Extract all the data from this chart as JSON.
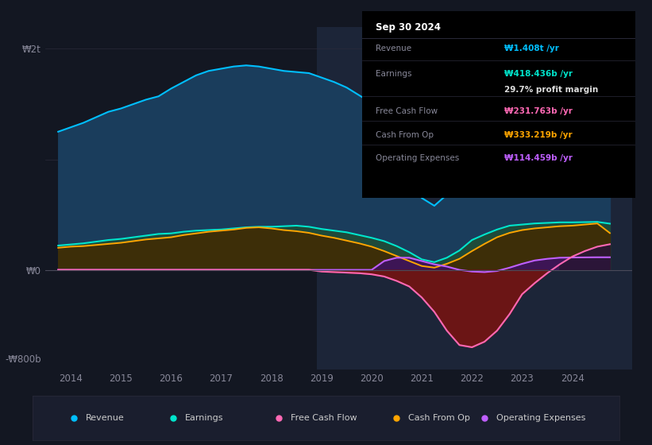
{
  "bg_color": "#131722",
  "plot_bg_color": "#131722",
  "info_box": {
    "title": "Sep 30 2024",
    "rows": [
      {
        "label": "Revenue",
        "value": "₩1.408t /yr",
        "color": "#00bfff"
      },
      {
        "label": "Earnings",
        "value": "₩418.436b /yr",
        "color": "#00e5cc"
      },
      {
        "label": "",
        "value": "29.7% profit margin",
        "color": "#ffffff"
      },
      {
        "label": "Free Cash Flow",
        "value": "₩231.763b /yr",
        "color": "#ff69b4"
      },
      {
        "label": "Cash From Op",
        "value": "₩333.219b /yr",
        "color": "#ffa500"
      },
      {
        "label": "Operating Expenses",
        "value": "₩114.459b /yr",
        "color": "#bf5fff"
      }
    ]
  },
  "years": [
    2013.75,
    2014.0,
    2014.25,
    2014.5,
    2014.75,
    2015.0,
    2015.25,
    2015.5,
    2015.75,
    2016.0,
    2016.25,
    2016.5,
    2016.75,
    2017.0,
    2017.25,
    2017.5,
    2017.75,
    2018.0,
    2018.25,
    2018.5,
    2018.75,
    2019.0,
    2019.25,
    2019.5,
    2019.75,
    2020.0,
    2020.25,
    2020.5,
    2020.75,
    2021.0,
    2021.25,
    2021.5,
    2021.75,
    2022.0,
    2022.25,
    2022.5,
    2022.75,
    2023.0,
    2023.25,
    2023.5,
    2023.75,
    2024.0,
    2024.25,
    2024.5,
    2024.75
  ],
  "revenue": [
    1250,
    1290,
    1330,
    1380,
    1430,
    1460,
    1500,
    1540,
    1570,
    1640,
    1700,
    1760,
    1800,
    1820,
    1840,
    1850,
    1840,
    1820,
    1800,
    1790,
    1780,
    1740,
    1700,
    1650,
    1580,
    1510,
    1400,
    1200,
    900,
    650,
    580,
    680,
    900,
    1100,
    1250,
    1380,
    1460,
    1500,
    1530,
    1540,
    1550,
    1570,
    1580,
    1590,
    1408
  ],
  "earnings": [
    220,
    230,
    240,
    255,
    270,
    280,
    295,
    310,
    325,
    330,
    345,
    355,
    360,
    365,
    375,
    385,
    390,
    390,
    395,
    400,
    390,
    370,
    355,
    340,
    315,
    290,
    260,
    215,
    160,
    95,
    70,
    110,
    175,
    270,
    320,
    365,
    400,
    410,
    420,
    425,
    430,
    430,
    432,
    434,
    418
  ],
  "free_cash_flow": [
    0,
    0,
    0,
    0,
    0,
    0,
    0,
    0,
    0,
    0,
    0,
    0,
    0,
    0,
    0,
    0,
    0,
    0,
    0,
    0,
    0,
    -15,
    -20,
    -25,
    -30,
    -40,
    -60,
    -100,
    -150,
    -250,
    -380,
    -550,
    -680,
    -700,
    -650,
    -550,
    -400,
    -220,
    -120,
    -30,
    50,
    120,
    170,
    210,
    232
  ],
  "cash_from_op": [
    200,
    210,
    215,
    225,
    235,
    245,
    260,
    275,
    285,
    295,
    315,
    330,
    345,
    355,
    365,
    380,
    385,
    375,
    360,
    350,
    335,
    310,
    290,
    265,
    240,
    210,
    170,
    125,
    80,
    35,
    20,
    55,
    100,
    170,
    235,
    295,
    335,
    360,
    375,
    385,
    395,
    400,
    410,
    420,
    333
  ],
  "operating_expenses": [
    0,
    0,
    0,
    0,
    0,
    0,
    0,
    0,
    0,
    0,
    0,
    0,
    0,
    0,
    0,
    0,
    0,
    0,
    0,
    0,
    0,
    0,
    0,
    0,
    0,
    0,
    80,
    110,
    110,
    80,
    50,
    30,
    0,
    -15,
    -20,
    -10,
    20,
    55,
    85,
    100,
    110,
    112,
    113,
    114,
    114
  ],
  "ylim": [
    -900,
    2200
  ],
  "ytick_vals": [
    2000,
    0,
    -800
  ],
  "ytick_labels": [
    "₩2t",
    "₩0",
    "-₩800b"
  ],
  "xlim": [
    2013.5,
    2025.2
  ],
  "xticks": [
    2014,
    2015,
    2016,
    2017,
    2018,
    2019,
    2020,
    2021,
    2022,
    2023,
    2024
  ],
  "colors": {
    "revenue_line": "#00bfff",
    "revenue_fill": "#1a3d5c",
    "earnings_line": "#00e5cc",
    "earnings_fill": "#1e4a3a",
    "fcf_line": "#ff69b4",
    "fcf_fill_neg": "#6b1515",
    "fcf_fill_pos": "#2a1535",
    "cash_op_line": "#ffa500",
    "cash_op_fill": "#3d2e08",
    "op_exp_line": "#bf5fff",
    "op_exp_fill_pos": "#3d1555",
    "op_exp_fill_neg": "#551535",
    "zero_line": "#4a4a5a",
    "grid_line": "#1e2535",
    "highlight_bg": "#1c2538"
  },
  "highlight_start": 2018.9,
  "highlight_end": 2025.2,
  "legend": [
    {
      "label": "Revenue",
      "color": "#00bfff"
    },
    {
      "label": "Earnings",
      "color": "#00e5cc"
    },
    {
      "label": "Free Cash Flow",
      "color": "#ff69b4"
    },
    {
      "label": "Cash From Op",
      "color": "#ffa500"
    },
    {
      "label": "Operating Expenses",
      "color": "#bf5fff"
    }
  ]
}
